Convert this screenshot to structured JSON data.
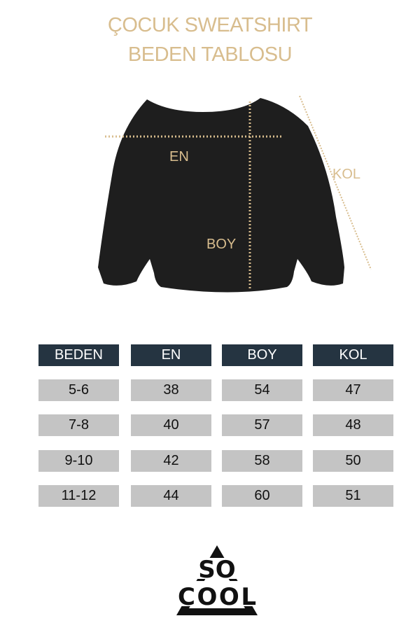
{
  "title": {
    "line1": "ÇOCUK SWEATSHIRT",
    "line2": "BEDEN TABLOSU"
  },
  "diagram_labels": {
    "en": "EN",
    "boy": "BOY",
    "kol": "KOL"
  },
  "colors": {
    "accent": "#d8bd8e",
    "header": "#253441",
    "cell": "#c4c4c4",
    "garment": "#1e1e1e"
  },
  "table": {
    "headers": [
      "BEDEN",
      "EN",
      "BOY",
      "KOL"
    ],
    "rows": [
      [
        "5-6",
        "38",
        "54",
        "47"
      ],
      [
        "7-8",
        "40",
        "57",
        "48"
      ],
      [
        "9-10",
        "42",
        "58",
        "50"
      ],
      [
        "11-12",
        "44",
        "60",
        "51"
      ]
    ]
  },
  "logo": {
    "text": "SO COOL"
  }
}
